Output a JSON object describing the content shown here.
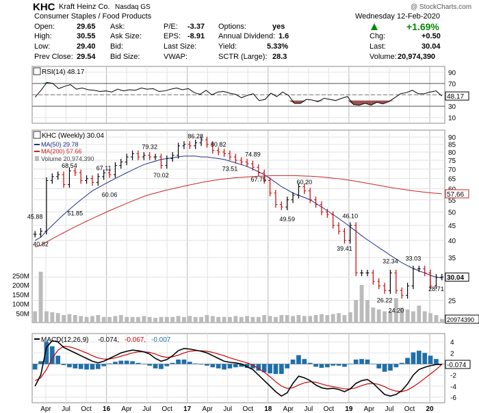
{
  "header": {
    "symbol": "KHC",
    "company": "Kraft Heinz Co.",
    "exchange": "Nasdaq GS",
    "sector": "Consumer Staples / Food Products",
    "date": "Wednesday  12-Feb-2020",
    "change_pct": "+1.69%",
    "watermark": "@ StockCharts.com",
    "quote": {
      "open_label": "Open:",
      "open": "29.65",
      "high_label": "High:",
      "high": "30.55",
      "low_label": "Low:",
      "low": "29.40",
      "prev_close_label": "Prev Close:",
      "prev_close": "29.54",
      "ask_label": "Ask:",
      "ask": "",
      "ask_size_label": "Ask Size:",
      "ask_size": "",
      "bid_label": "Bid:",
      "bid": "",
      "bid_size_label": "Bid Size:",
      "bid_size": "",
      "pe_label": "P/E:",
      "pe": "-3.37",
      "eps_label": "EPS:",
      "eps": "-8.91",
      "last_size_label": "Last Size:",
      "last_size": "",
      "vwap_label": "VWAP:",
      "vwap": "",
      "options_label": "Options:",
      "options": "yes",
      "dividend_label": "Annual Dividend:",
      "dividend": "1.6",
      "yield_label": "Yield:",
      "yield": "5.33%",
      "sctr_label": "SCTR (Large):",
      "sctr": "28.3",
      "chg_label": "Chg:",
      "chg": "+0.50",
      "last_label": "Last:",
      "last": "30.04",
      "volume_label": "Volume:",
      "volume": "20,974,390"
    }
  },
  "colors": {
    "price_up": "#000000",
    "price_down": "#cc0000",
    "ma50": "#1f2f8f",
    "ma200": "#cc2222",
    "volume": "#bbbbbb",
    "rsi_line": "#000000",
    "rsi_overbought_fill": "#3a7a3a",
    "rsi_oversold_fill": "#a05050",
    "macd_line": "#000000",
    "signal_line": "#cc0000",
    "histogram": "#1f6fa8",
    "change_up": "#008800"
  },
  "chart_data": [
    {
      "type": "line",
      "panel": "RSI",
      "legend": "RSI(14) 48.17",
      "current_label": "48.17",
      "y_ticks": [
        10,
        30,
        50,
        70,
        90
      ],
      "ylim": [
        0,
        100
      ],
      "reference_lines": [
        30,
        70
      ],
      "series": [
        {
          "values": [
            46,
            58,
            72,
            70,
            61,
            65,
            68,
            60,
            62,
            59,
            58,
            56,
            57,
            55,
            60,
            57,
            59,
            58,
            62,
            60,
            61,
            56,
            57,
            60,
            62,
            59,
            61,
            54,
            51,
            58,
            50,
            55,
            56,
            53,
            51,
            45,
            49,
            52,
            40,
            42,
            53,
            47,
            55,
            49,
            35,
            35,
            42,
            41,
            38,
            44,
            42,
            40,
            44,
            47,
            33,
            32,
            35,
            32,
            37,
            34,
            38,
            45,
            52,
            54,
            58,
            52,
            52,
            55,
            57,
            48
          ]
        }
      ]
    },
    {
      "type": "line",
      "panel": "Price",
      "legend": "KHC (Weekly) 30.04",
      "ma50_legend": "MA(50) 29.78",
      "ma200_legend": "MA(200) 57.66",
      "volume_legend": "Volume 20,974,390",
      "scale": "log",
      "ylim": [
        21,
        95
      ],
      "y_ticks": [
        25,
        30,
        35,
        40,
        45,
        50,
        55,
        60,
        65,
        70,
        75,
        80,
        85,
        90
      ],
      "current_price_label": "30.04",
      "ma200_label": "57.66",
      "volume_label": "20974390",
      "volume_ticks": [
        "50M",
        "100M",
        "150M",
        "200M",
        "250M"
      ],
      "volume_tick_values": [
        50,
        100,
        150,
        200,
        250
      ],
      "volume_max": 400,
      "x_labels": [
        "Apr",
        "Jul",
        "Oct",
        "16",
        "Apr",
        "Jul",
        "Oct",
        "17",
        "Apr",
        "Jul",
        "Oct",
        "18",
        "Apr",
        "Jul",
        "Oct",
        "19",
        "Apr",
        "Jul",
        "Oct",
        "20"
      ],
      "close": [
        42,
        43,
        64,
        66,
        67,
        62,
        69,
        68,
        64,
        65,
        63,
        66,
        68,
        67,
        72,
        74,
        77,
        79,
        77,
        78,
        77,
        77,
        72,
        76,
        78,
        84,
        85,
        84,
        86,
        88,
        85,
        81,
        80,
        79,
        77,
        75,
        74,
        73,
        71,
        68,
        64,
        58,
        53,
        52,
        55,
        57,
        61,
        59,
        55,
        53,
        50,
        49,
        45,
        43,
        40,
        45,
        31,
        31,
        31,
        29,
        28,
        27,
        31,
        27,
        26,
        28,
        32,
        32,
        31,
        28,
        30,
        30
      ],
      "volume": [
        60,
        270,
        60,
        55,
        50,
        40,
        45,
        40,
        35,
        30,
        35,
        40,
        30,
        30,
        35,
        40,
        30,
        30,
        30,
        35,
        30,
        25,
        30,
        30,
        30,
        35,
        30,
        35,
        30,
        30,
        40,
        35,
        30,
        30,
        30,
        35,
        30,
        35,
        30,
        30,
        40,
        35,
        30,
        40,
        40,
        35,
        40,
        35,
        35,
        40,
        45,
        40,
        45,
        50,
        40,
        55,
        120,
        200,
        120,
        80,
        70,
        60,
        60,
        130,
        80,
        70,
        60,
        90,
        60,
        50,
        40,
        20
      ],
      "ma50": [
        40,
        41,
        43,
        45,
        47,
        49,
        51,
        53,
        55,
        57,
        59,
        60.5,
        62,
        63.5,
        65,
        66.5,
        68,
        69.5,
        71,
        72.5,
        73.5,
        74.5,
        75.5,
        76,
        76.5,
        77,
        77.5,
        77.5,
        77.5,
        77,
        77,
        76.5,
        76,
        75.5,
        74.5,
        73.5,
        72.5,
        71.5,
        70,
        68.5,
        67,
        65,
        63,
        61,
        59.5,
        58,
        57,
        56,
        55,
        53.5,
        52,
        50.5,
        49,
        47.5,
        46,
        44.5,
        43,
        41.5,
        40.2,
        39,
        37.8,
        36.7,
        35.6,
        34.6,
        33.6,
        32.8,
        32.1,
        31.5,
        31,
        30.4,
        30,
        29.78
      ],
      "ma200": [
        38,
        38.5,
        39.5,
        40.5,
        41.5,
        42.5,
        43.5,
        44.5,
        45.5,
        46.5,
        47.5,
        48.5,
        49.5,
        50.5,
        51.5,
        52.5,
        53.5,
        54.5,
        55.5,
        56.5,
        57.3,
        58,
        58.7,
        59.4,
        60,
        60.6,
        61.2,
        61.8,
        62.4,
        63,
        63.5,
        64,
        64.4,
        64.8,
        65.1,
        65.4,
        65.6,
        65.8,
        66,
        66.2,
        66.3,
        66.4,
        66.5,
        66.5,
        66.5,
        66.5,
        66.4,
        66.3,
        66.2,
        66,
        65.8,
        65.5,
        65.2,
        64.9,
        64.5,
        64.1,
        63.6,
        63.1,
        62.6,
        62.1,
        61.6,
        61.1,
        60.6,
        60.2,
        59.8,
        59.4,
        59,
        58.7,
        58.4,
        58.1,
        57.9,
        57.66
      ],
      "annotations": [
        {
          "text": "45.88",
          "i": 0,
          "value": 45.88,
          "pos": "above"
        },
        {
          "text": "40.82",
          "i": 1,
          "value": 40.82,
          "pos": "below"
        },
        {
          "text": "68.54",
          "i": 6,
          "value": 68.54,
          "pos": "above"
        },
        {
          "text": "51.85",
          "i": 7,
          "value": 51.85,
          "pos": "below"
        },
        {
          "text": "67.11",
          "i": 12,
          "value": 67.11,
          "pos": "above"
        },
        {
          "text": "60.06",
          "i": 13,
          "value": 60.06,
          "pos": "below"
        },
        {
          "text": "79.32",
          "i": 20,
          "value": 79.32,
          "pos": "above"
        },
        {
          "text": "70.02",
          "i": 22,
          "value": 70.02,
          "pos": "below"
        },
        {
          "text": "86.28",
          "i": 28,
          "value": 86.28,
          "pos": "above"
        },
        {
          "text": "80.82",
          "i": 32,
          "value": 80.82,
          "pos": "above"
        },
        {
          "text": "73.51",
          "i": 34,
          "value": 73.51,
          "pos": "below"
        },
        {
          "text": "74.89",
          "i": 38,
          "value": 74.89,
          "pos": "above"
        },
        {
          "text": "67.75",
          "i": 39,
          "value": 67.75,
          "pos": "below"
        },
        {
          "text": "49.59",
          "i": 44,
          "value": 49.59,
          "pos": "below"
        },
        {
          "text": "60.20",
          "i": 47,
          "value": 60.2,
          "pos": "above"
        },
        {
          "text": "46.10",
          "i": 55,
          "value": 46.1,
          "pos": "above"
        },
        {
          "text": "39.41",
          "i": 54,
          "value": 39.41,
          "pos": "below"
        },
        {
          "text": "32.34",
          "i": 62,
          "value": 32.34,
          "pos": "above"
        },
        {
          "text": "26.22",
          "i": 61,
          "value": 26.22,
          "pos": "below"
        },
        {
          "text": "33.03",
          "i": 66,
          "value": 33.03,
          "pos": "above"
        },
        {
          "text": "24.20",
          "i": 63,
          "value": 24.2,
          "pos": "below"
        },
        {
          "text": "28.71",
          "i": 70,
          "value": 28.71,
          "pos": "below"
        }
      ]
    },
    {
      "type": "line",
      "panel": "MACD",
      "legend_macd": "MACD(12,26,9)",
      "legend_macd_value": "-0.074,",
      "legend_signal_value": "-0.067,",
      "legend_hist_value": "-0.007",
      "current_label": "-0.074",
      "ylim": [
        -7,
        5.5
      ],
      "y_ticks": [
        4,
        2,
        0,
        -2,
        -4,
        -6
      ],
      "series": [
        {
          "name": "MACD",
          "values": [
            -4,
            -2,
            3,
            4.2,
            4,
            3,
            2.5,
            2,
            1.5,
            1,
            0.5,
            0.2,
            0.5,
            1,
            1.5,
            2,
            2.3,
            2.5,
            2.4,
            2.2,
            1.8,
            1,
            0.5,
            0.8,
            1.5,
            2.4,
            2.8,
            2.7,
            2.5,
            2.3,
            2,
            1.5,
            1,
            0.5,
            0.3,
            0.2,
            0,
            -0.5,
            -1,
            -2,
            -3,
            -4,
            -5,
            -5.8,
            -5.2,
            -3.5,
            -2.2,
            -2.5,
            -3,
            -3.8,
            -4.3,
            -4.5,
            -4.4,
            -4.6,
            -5,
            -4.5,
            -3.5,
            -3,
            -2.8,
            -3.5,
            -4.5,
            -5.5,
            -5.8,
            -5.5,
            -4.8,
            -3.6,
            -2,
            -1,
            -0.6,
            -0.3,
            -0.1,
            -0.074
          ]
        },
        {
          "name": "Signal",
          "values": [
            -3,
            -2.5,
            -1,
            1,
            2.5,
            3.2,
            3.1,
            2.8,
            2.4,
            2,
            1.5,
            1.1,
            0.9,
            0.9,
            1.1,
            1.4,
            1.7,
            2,
            2.2,
            2.2,
            2.1,
            1.8,
            1.4,
            1.2,
            1.3,
            1.6,
            2,
            2.3,
            2.4,
            2.4,
            2.3,
            2.1,
            1.8,
            1.5,
            1.1,
            0.8,
            0.5,
            0.2,
            -0.2,
            -0.8,
            -1.5,
            -2.3,
            -3.2,
            -4,
            -4.4,
            -4.3,
            -3.8,
            -3.4,
            -3.2,
            -3.3,
            -3.6,
            -3.9,
            -4.1,
            -4.3,
            -4.5,
            -4.5,
            -4.3,
            -3.9,
            -3.6,
            -3.5,
            -3.7,
            -4.1,
            -4.6,
            -4.9,
            -5,
            -4.7,
            -4.1,
            -3.4,
            -2.6,
            -1.8,
            -1,
            -0.067
          ]
        }
      ]
    }
  ]
}
